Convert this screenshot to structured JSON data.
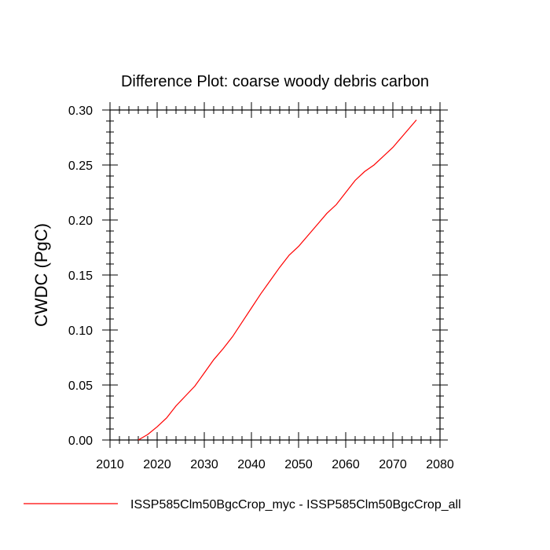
{
  "chart_data": {
    "type": "line",
    "title": "Difference Plot: coarse woody debris carbon",
    "xlabel": "",
    "ylabel": "CWDC  (PgC)",
    "xlim": [
      2010,
      2080
    ],
    "ylim": [
      0.0,
      0.3
    ],
    "x_ticks": [
      "2010",
      "2020",
      "2030",
      "2040",
      "2050",
      "2060",
      "2070",
      "2080"
    ],
    "y_ticks": [
      "0.00",
      "0.05",
      "0.10",
      "0.15",
      "0.20",
      "0.25",
      "0.30"
    ],
    "grid": false,
    "legend_position": "bottom",
    "series": [
      {
        "name": "ISSP585Clm50BgcCrop_myc - ISSP585Clm50BgcCrop_all",
        "color": "#ff0000",
        "x": [
          2016,
          2018,
          2020,
          2022,
          2024,
          2026,
          2028,
          2030,
          2032,
          2034,
          2036,
          2038,
          2040,
          2042,
          2044,
          2046,
          2048,
          2050,
          2052,
          2054,
          2056,
          2058,
          2060,
          2062,
          2064,
          2066,
          2068,
          2070,
          2072,
          2074,
          2075
        ],
        "y": [
          0.0,
          0.005,
          0.012,
          0.02,
          0.031,
          0.04,
          0.049,
          0.061,
          0.073,
          0.083,
          0.094,
          0.107,
          0.12,
          0.133,
          0.145,
          0.157,
          0.168,
          0.176,
          0.186,
          0.196,
          0.206,
          0.214,
          0.225,
          0.236,
          0.244,
          0.25,
          0.258,
          0.266,
          0.276,
          0.286,
          0.291
        ]
      }
    ]
  }
}
